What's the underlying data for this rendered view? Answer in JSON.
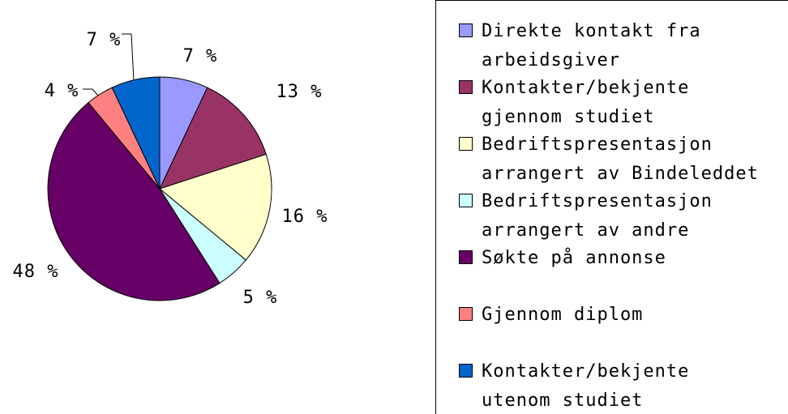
{
  "chart_data": {
    "type": "pie",
    "categories": [
      "Direkte kontakt fra arbeidsgiver",
      "Kontakter/bekjente gjennom studiet",
      "Bedriftspresentasjon arrangert av Bindeleddet",
      "Bedriftspresentasjon arrangert av andre",
      "Søkte på annonse",
      "Gjennom diplom",
      "Kontakter/bekjente utenom studiet"
    ],
    "values": [
      7,
      13,
      16,
      5,
      48,
      4,
      7
    ],
    "value_labels": [
      "7 %",
      "13 %",
      "16 %",
      "5 %",
      "48 %",
      "4 %",
      "7 %"
    ],
    "colors": [
      "#9999ff",
      "#993366",
      "#ffffcc",
      "#ccffff",
      "#660066",
      "#ff8080",
      "#0066cc"
    ],
    "legend": "right"
  }
}
